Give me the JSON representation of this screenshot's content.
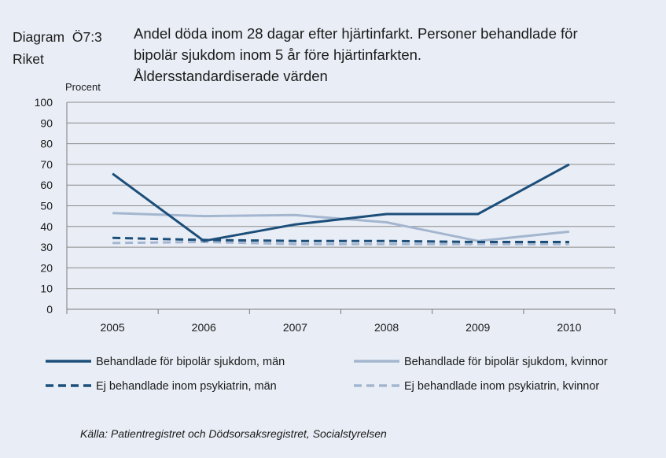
{
  "header": {
    "diagram_id": "Diagram  Ö7:3",
    "region": "Riket",
    "title_lines": [
      "Andel döda inom 28 dagar efter hjärtinfarkt. Personer behandlade för",
      "bipolär sjukdom inom 5 år före hjärtinfarkten.",
      "Åldersstandardiserade värden"
    ]
  },
  "chart_data": {
    "type": "line",
    "title": "Andel döda inom 28 dagar efter hjärtinfarkt. Personer behandlade för bipolär sjukdom inom 5 år före hjärtinfarkten. Åldersstandardiserade värden",
    "ylabel": "Procent",
    "xlabel": "",
    "ylim": [
      0,
      100
    ],
    "yticks": [
      0,
      10,
      20,
      30,
      40,
      50,
      60,
      70,
      80,
      90,
      100
    ],
    "grid": true,
    "categories": [
      "2005",
      "2006",
      "2007",
      "2008",
      "2009",
      "2010"
    ],
    "series": [
      {
        "name": "Behandlade för bipolär sjukdom, män",
        "values": [
          65.5,
          33,
          41,
          46,
          46,
          70
        ],
        "color": "#1c4e7a",
        "dash": false
      },
      {
        "name": "Behandlade för bipolär sjukdom, kvinnor",
        "values": [
          46.5,
          45,
          45.5,
          42,
          33,
          37.5
        ],
        "color": "#a4b6cf",
        "dash": false
      },
      {
        "name": "Ej behandlade inom psykiatrin, män",
        "values": [
          34.5,
          33.5,
          33,
          33,
          32.5,
          32.5
        ],
        "color": "#1c4e7a",
        "dash": true
      },
      {
        "name": "Ej behandlade inom psykiatrin, kvinnor",
        "values": [
          32,
          32.5,
          31.5,
          31.5,
          31.5,
          31.5
        ],
        "color": "#a4b6cf",
        "dash": true
      }
    ],
    "legend_position": "bottom"
  },
  "footer": {
    "source": "Källa: Patientregistret och Dödsorsaksregistret, Socialstyrelsen"
  }
}
